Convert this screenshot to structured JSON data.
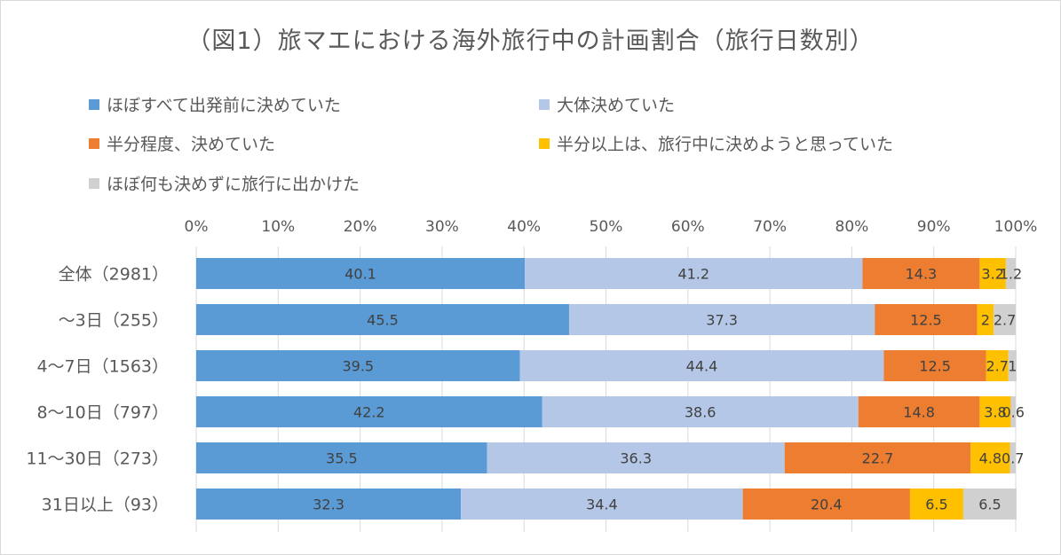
{
  "chart_data": {
    "type": "bar",
    "orientation": "horizontal",
    "stacked": true,
    "title": "（図1）旅マエにおける海外旅行中の計画割合（旅行日数別）",
    "categories": [
      "全体（2981）",
      "～3日（255）",
      "4～7日（1563）",
      "8～10日（797）",
      "11～30日（273）",
      "31日以上（93）"
    ],
    "xlim": [
      0,
      100
    ],
    "x_ticks": [
      "0%",
      "10%",
      "20%",
      "30%",
      "40%",
      "50%",
      "60%",
      "70%",
      "80%",
      "90%",
      "100%"
    ],
    "legend_position": "top",
    "grid": true,
    "series": [
      {
        "name": "ほぼすべて出発前に決めていた",
        "color": "#5b9bd5",
        "label_color": "#404040",
        "values": [
          40.1,
          45.5,
          39.5,
          42.2,
          35.5,
          32.3
        ],
        "labels": [
          "40.1",
          "45.5",
          "39.5",
          "42.2",
          "35.5",
          "32.3"
        ]
      },
      {
        "name": "大体決めていた",
        "color": "#b4c7e7",
        "label_color": "#404040",
        "values": [
          41.2,
          37.3,
          44.4,
          38.6,
          36.3,
          34.4
        ],
        "labels": [
          "41.2",
          "37.3",
          "44.4",
          "38.6",
          "36.3",
          "34.4"
        ]
      },
      {
        "name": "半分程度、決めていた",
        "color": "#ed7d31",
        "label_color": "#404040",
        "values": [
          14.3,
          12.5,
          12.5,
          14.8,
          22.7,
          20.4
        ],
        "labels": [
          "14.3",
          "12.5",
          "12.5",
          "14.8",
          "22.7",
          "20.4"
        ]
      },
      {
        "name": "半分以上は、旅行中に決めようと思っていた",
        "color": "#ffc000",
        "label_color": "#404040",
        "values": [
          3.2,
          2,
          2.7,
          3.8,
          4.8,
          6.5
        ],
        "labels": [
          "3.2",
          "2",
          "2.7",
          "3.8",
          "4.8",
          "6.5"
        ]
      },
      {
        "name": "ほぼ何も決めずに旅行に出かけた",
        "color": "#d0d0d0",
        "label_color": "#404040",
        "values": [
          1.2,
          2.7,
          1,
          0.6,
          0.7,
          6.5
        ],
        "labels": [
          "1.2",
          "2.7",
          "1",
          "0.6",
          "0.7",
          "6.5"
        ]
      }
    ]
  }
}
